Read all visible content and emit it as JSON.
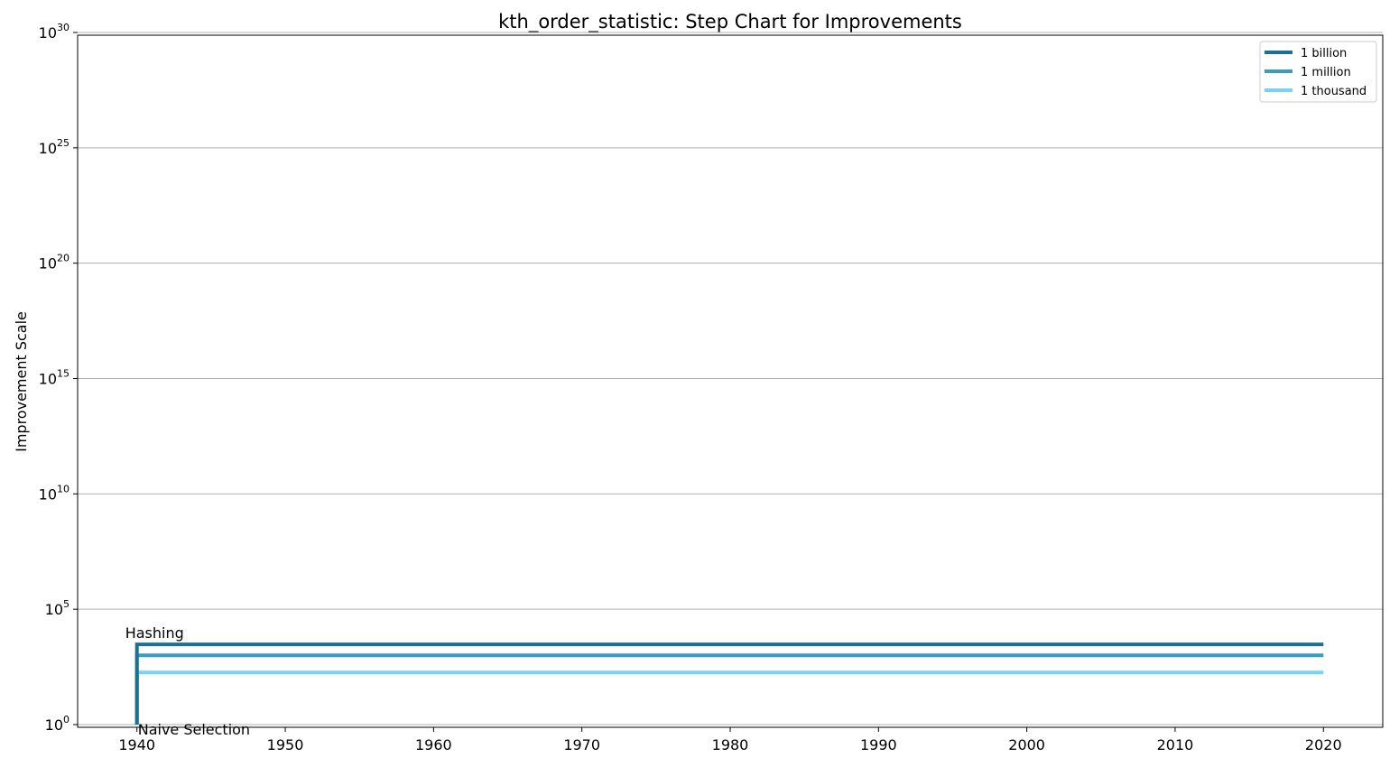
{
  "chart_data": {
    "type": "line",
    "step": true,
    "title": "kth_order_statistic: Step Chart for Improvements",
    "xlabel": "",
    "ylabel": "Improvement Scale",
    "xlim": [
      1936,
      2024
    ],
    "ylim": [
      1,
      1e+30
    ],
    "yscale": "log",
    "xticks": [
      1940,
      1950,
      1960,
      1970,
      1980,
      1990,
      2000,
      2010,
      2020
    ],
    "yticks": [
      {
        "base": "10",
        "exp": "0",
        "value": 1
      },
      {
        "base": "10",
        "exp": "5",
        "value": 100000.0
      },
      {
        "base": "10",
        "exp": "10",
        "value": 10000000000.0
      },
      {
        "base": "10",
        "exp": "15",
        "value": 1000000000000000.0
      },
      {
        "base": "10",
        "exp": "20",
        "value": 1e+20
      },
      {
        "base": "10",
        "exp": "25",
        "value": 1e+25
      },
      {
        "base": "10",
        "exp": "30",
        "value": 1e+30
      }
    ],
    "grid": "y-major",
    "legend": "top-right",
    "series": [
      {
        "name": "1 billion",
        "color": "#1b7191",
        "x": [
          1940,
          1940,
          2020
        ],
        "y": [
          1,
          3000,
          3000
        ]
      },
      {
        "name": "1 million",
        "color": "#3a9bc0",
        "x": [
          1940,
          1940,
          2020
        ],
        "y": [
          1,
          1000,
          1000
        ]
      },
      {
        "name": "1 thousand",
        "color": "#77d2f5",
        "x": [
          1940,
          1940,
          2020
        ],
        "y": [
          1,
          180,
          180
        ]
      }
    ],
    "annotations": [
      {
        "text": "Hashing",
        "x": 1940,
        "y": 3000,
        "anchor": "above-left"
      },
      {
        "text": "Naive Selection",
        "x": 1940,
        "y": 1,
        "anchor": "below-right"
      }
    ]
  }
}
